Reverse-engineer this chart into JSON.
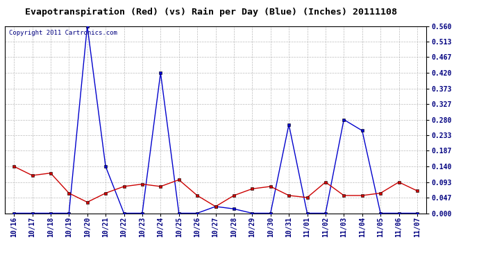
{
  "title": "Evapotranspiration (Red) (vs) Rain per Day (Blue) (Inches) 20111108",
  "copyright": "Copyright 2011 Cartronics.com",
  "labels": [
    "10/16",
    "10/17",
    "10/18",
    "10/19",
    "10/20",
    "10/21",
    "10/22",
    "10/23",
    "10/24",
    "10/25",
    "10/26",
    "10/27",
    "10/28",
    "10/29",
    "10/30",
    "10/31",
    "11/01",
    "11/02",
    "11/03",
    "11/04",
    "11/05",
    "11/06",
    "11/07"
  ],
  "blue_rain": [
    0.0,
    0.0,
    0.0,
    0.0,
    0.56,
    0.14,
    0.0,
    0.0,
    0.42,
    0.0,
    0.0,
    0.02,
    0.013,
    0.0,
    0.0,
    0.265,
    0.0,
    0.0,
    0.28,
    0.247,
    0.0,
    0.0,
    0.0
  ],
  "red_et": [
    0.14,
    0.113,
    0.12,
    0.06,
    0.033,
    0.06,
    0.08,
    0.087,
    0.08,
    0.1,
    0.053,
    0.02,
    0.053,
    0.073,
    0.08,
    0.053,
    0.047,
    0.093,
    0.053,
    0.053,
    0.06,
    0.093,
    0.067
  ],
  "yticks": [
    0.0,
    0.047,
    0.093,
    0.14,
    0.187,
    0.233,
    0.28,
    0.327,
    0.373,
    0.42,
    0.467,
    0.513,
    0.56
  ],
  "ylim": [
    0.0,
    0.56
  ],
  "blue_color": "#0000cc",
  "red_color": "#cc0000",
  "bg_color": "#ffffff",
  "plot_bg_color": "#ffffff",
  "grid_color": "#bbbbbb",
  "title_fontsize": 9.5,
  "tick_fontsize": 7,
  "copyright_fontsize": 6.5
}
